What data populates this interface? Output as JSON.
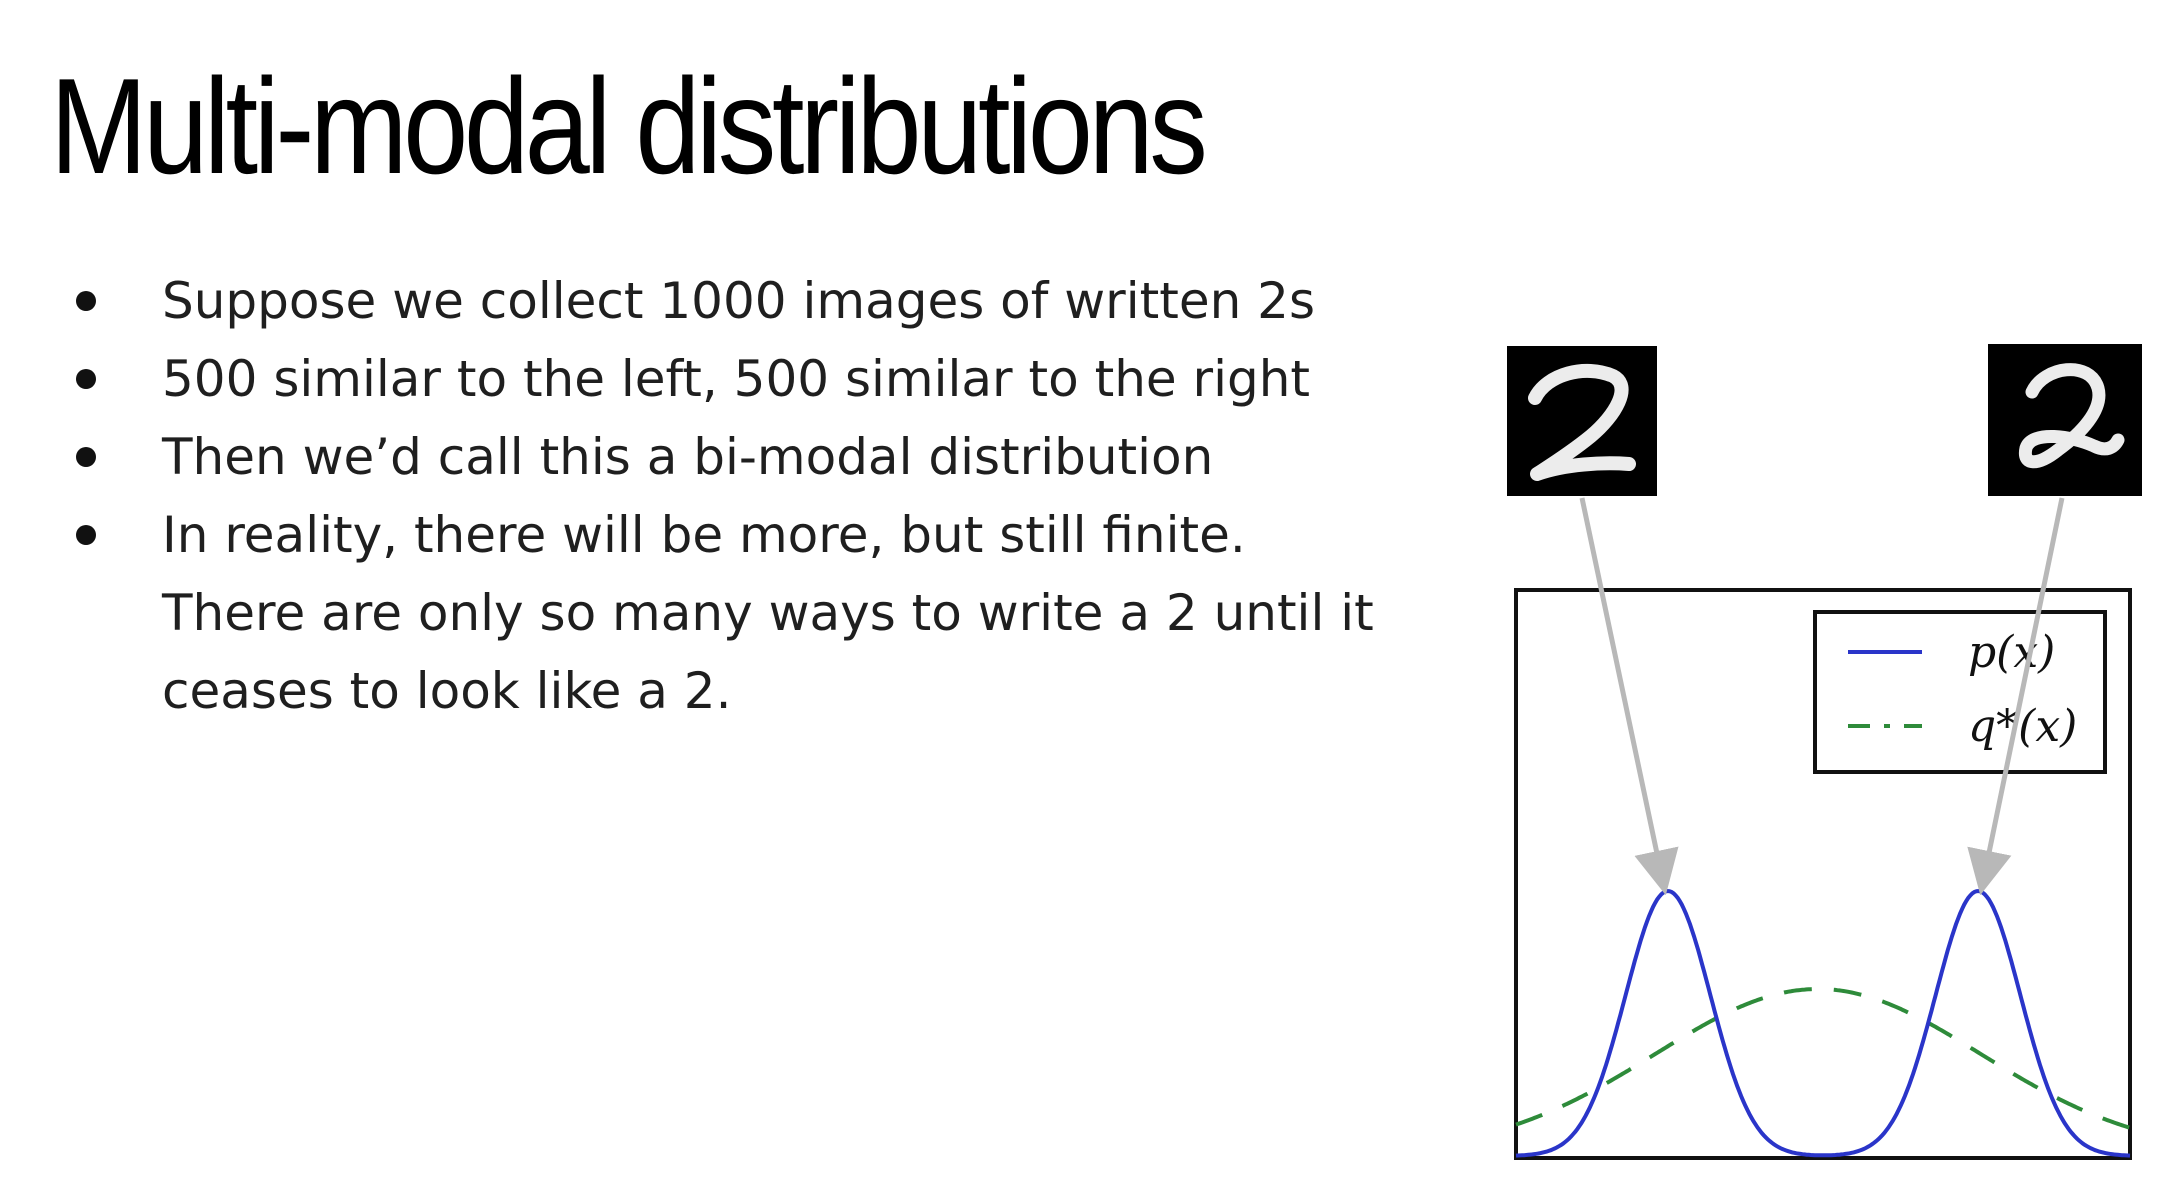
{
  "slide": {
    "title": "Multi-modal distributions",
    "bullets": [
      "Suppose we collect 1000 images of written 2s",
      "500 similar to the left, 500 similar to the right",
      "Then we’d call this a bi-modal distribution",
      "In reality, there will be more, but still finite. There are only so many ways to write a 2 until it ceases to look like a 2."
    ]
  },
  "images": {
    "left_digit": "2",
    "right_digit": "2"
  },
  "legend": {
    "p_label": "p(x)",
    "q_label": "q*(x)"
  },
  "colors": {
    "p_line": "#2a35c9",
    "q_line": "#2e8b3a",
    "arrow": "#b8b8b8"
  }
}
